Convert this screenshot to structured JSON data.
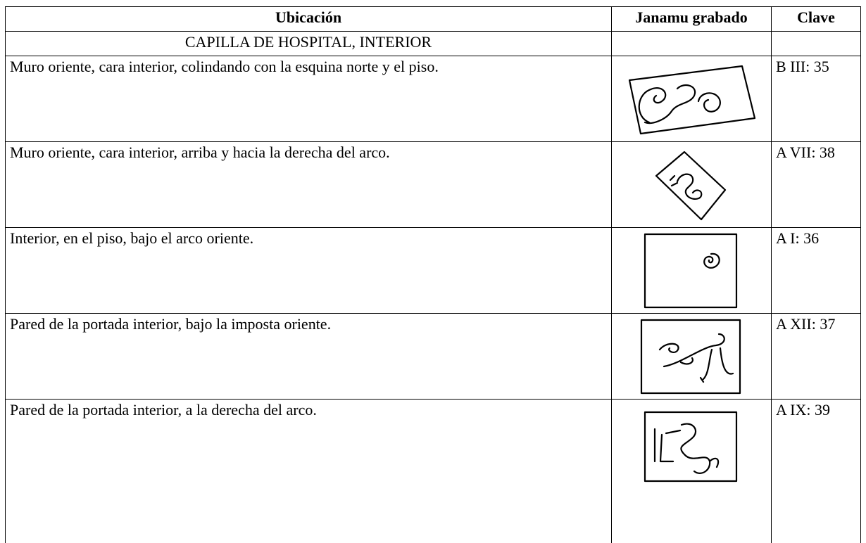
{
  "table": {
    "header": [
      "Ubicación",
      "Janamu grabado",
      "Clave"
    ],
    "section": "CAPILLA DE HOSPITAL, INTERIOR",
    "rows": [
      {
        "location": "Muro oriente, cara interior, colindando con la esquina norte y el piso.",
        "key": "B III: 35"
      },
      {
        "location": "Muro oriente, cara interior, arriba y hacia la derecha del arco.",
        "key": "A VII: 38"
      },
      {
        "location": "Interior, en el piso, bajo el arco oriente.",
        "key": "A I: 36"
      },
      {
        "location": "Pared de la portada interior, bajo la imposta oriente.",
        "key": "A XII: 37"
      },
      {
        "location": "Pared de la portada interior, a la derecha del arco.",
        "key": "A IX: 39"
      }
    ]
  }
}
